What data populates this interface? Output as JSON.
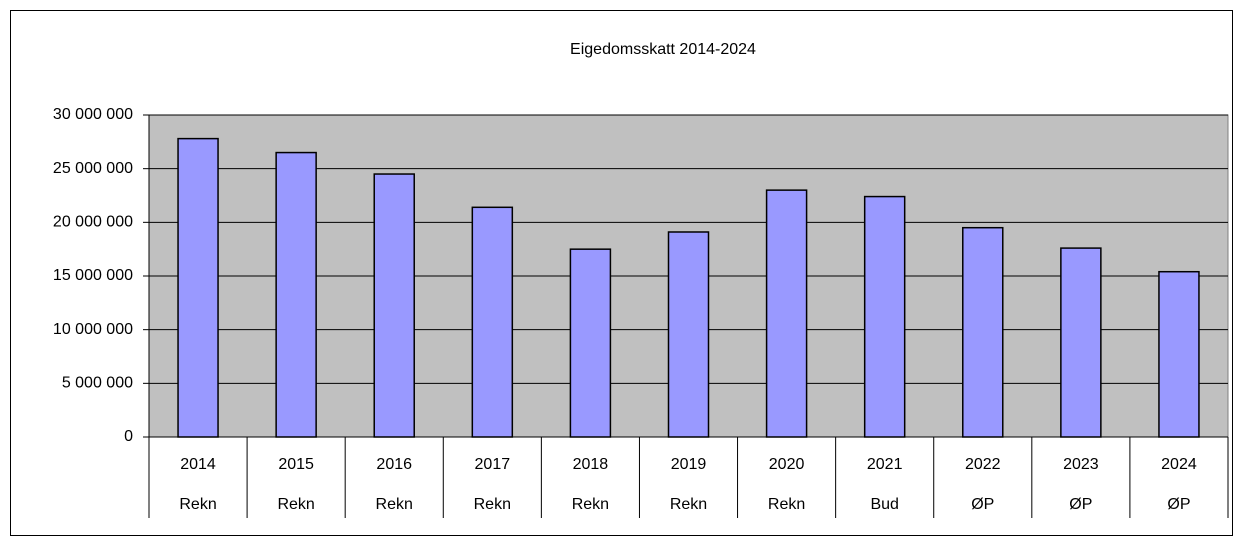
{
  "chart_data": {
    "type": "bar",
    "title": "Eigedomsskatt 2014-2024",
    "categories": [
      "2014",
      "2015",
      "2016",
      "2017",
      "2018",
      "2019",
      "2020",
      "2021",
      "2022",
      "2023",
      "2024"
    ],
    "category_sublabels": [
      "Rekn",
      "Rekn",
      "Rekn",
      "Rekn",
      "Rekn",
      "Rekn",
      "Rekn",
      "Bud",
      "ØP",
      "ØP",
      "ØP"
    ],
    "values": [
      27800000,
      26500000,
      24500000,
      21400000,
      17500000,
      19100000,
      23000000,
      22400000,
      19500000,
      17600000,
      15400000
    ],
    "color": "#9999ff",
    "ylim": [
      0,
      30000000
    ],
    "yticks": [
      0,
      {
        "value": 5000000,
        "label": "5 000 000"
      },
      {
        "value": 10000000,
        "label": "10 000 000"
      },
      {
        "value": 15000000,
        "label": "15 000 000"
      },
      {
        "value": 20000000,
        "label": "20 000 000"
      },
      {
        "value": 25000000,
        "label": "25 000 000"
      },
      {
        "value": 30000000,
        "label": "30 000 000"
      }
    ],
    "grid": true
  }
}
